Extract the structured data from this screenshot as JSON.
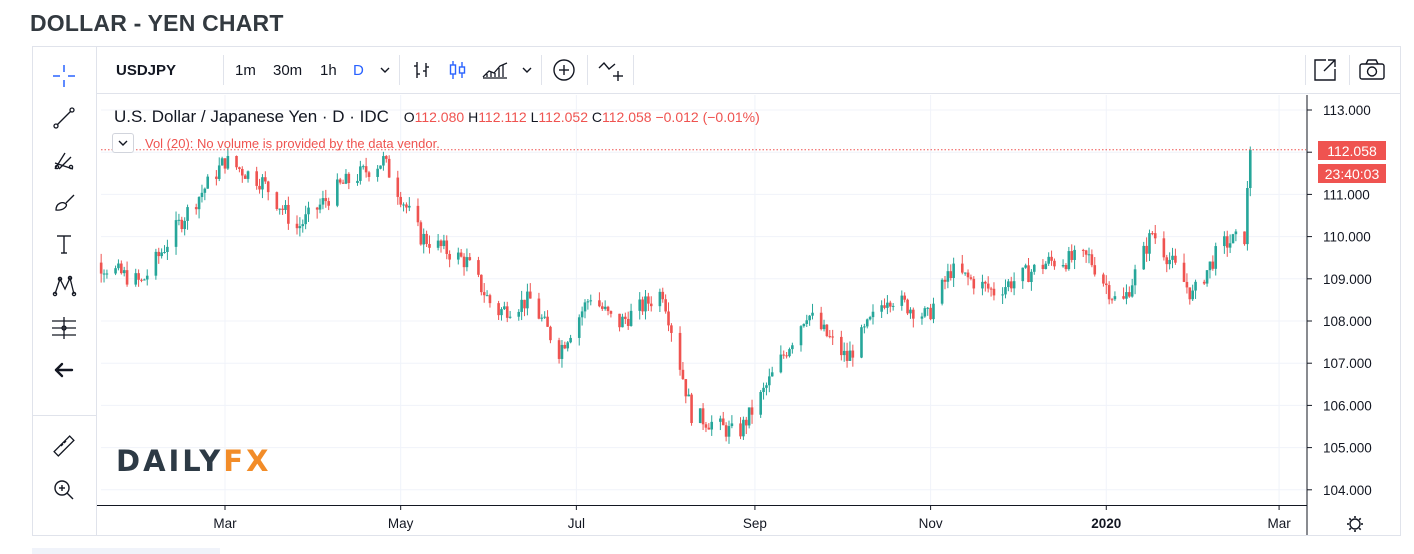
{
  "page": {
    "title": "DOLLAR - YEN CHART"
  },
  "toolbar": {
    "symbol": "USDJPY",
    "intervals": [
      "1m",
      "30m",
      "1h",
      "D"
    ],
    "active_interval": "D",
    "icons": [
      "bars-icon",
      "candles-icon",
      "area-chart-icon",
      "chevron-down-icon",
      "add-indicator-icon",
      "compare-icon",
      "popout-icon",
      "camera-icon"
    ]
  },
  "left_tools": [
    "crosshair-icon",
    "trend-line-icon",
    "pitchfork-icon",
    "brush-icon",
    "text-icon",
    "pattern-icon",
    "fib-icon",
    "back-arrow-icon",
    "ruler-icon",
    "zoom-in-icon"
  ],
  "legend": {
    "instrument": "U.S. Dollar / Japanese Yen · D · IDC",
    "open_label": "O",
    "open": "112.080",
    "high_label": "H",
    "high": "112.112",
    "low_label": "L",
    "low": "112.052",
    "close_label": "C",
    "close": "112.058",
    "change": "−0.012 (−0.01%)",
    "volume_note": "Vol (20): No volume is provided by the data vendor."
  },
  "price_tags": {
    "last_price": "112.058",
    "countdown": "23:40:03"
  },
  "logo": {
    "part1": "DAILY",
    "part2": "FX"
  },
  "colors": {
    "up": "#26a69a",
    "down": "#ef5350",
    "accent": "#2962ff",
    "grid": "#f0f3fa"
  },
  "chart_data": {
    "type": "candlestick",
    "ylim": [
      103.7,
      113.4
    ],
    "y_ticks": [
      "113.000",
      "112.000",
      "111.000",
      "110.000",
      "109.000",
      "108.000",
      "107.000",
      "106.000",
      "105.000",
      "104.000"
    ],
    "x_ticks": [
      "Mar",
      "May",
      "Jul",
      "Sep",
      "Nov",
      "2020",
      "Mar"
    ],
    "last_price": 112.058,
    "path_points": [
      {
        "x": "Jan 8",
        "y": 109.6
      },
      {
        "x": "Jan 31",
        "y": 108.9
      },
      {
        "x": "Feb 15",
        "y": 110.5
      },
      {
        "x": "Mar 1",
        "y": 111.8
      },
      {
        "x": "Mar 14",
        "y": 111.3
      },
      {
        "x": "Mar 26",
        "y": 110.2
      },
      {
        "x": "Apr 10",
        "y": 111.2
      },
      {
        "x": "Apr 25",
        "y": 111.8
      },
      {
        "x": "May 8",
        "y": 110.0
      },
      {
        "x": "May 24",
        "y": 109.4
      },
      {
        "x": "Jun 3",
        "y": 108.2
      },
      {
        "x": "Jun 15",
        "y": 108.5
      },
      {
        "x": "Jun 25",
        "y": 107.3
      },
      {
        "x": "Jul 6",
        "y": 108.6
      },
      {
        "x": "Jul 15",
        "y": 107.9
      },
      {
        "x": "Jul 31",
        "y": 108.7
      },
      {
        "x": "Aug 10",
        "y": 105.8
      },
      {
        "x": "Aug 26",
        "y": 105.3
      },
      {
        "x": "Sep 3",
        "y": 106.2
      },
      {
        "x": "Sep 19",
        "y": 108.2
      },
      {
        "x": "Oct 3",
        "y": 107.1
      },
      {
        "x": "Oct 17",
        "y": 108.6
      },
      {
        "x": "Oct 31",
        "y": 108.1
      },
      {
        "x": "Nov 8",
        "y": 109.2
      },
      {
        "x": "Nov 23",
        "y": 108.7
      },
      {
        "x": "Dec 12",
        "y": 109.4
      },
      {
        "x": "Dec 26",
        "y": 109.5
      },
      {
        "x": "Jan 6",
        "y": 108.3
      },
      {
        "x": "Jan 17",
        "y": 110.1
      },
      {
        "x": "Jan 31",
        "y": 108.6
      },
      {
        "x": "Feb 10",
        "y": 109.8
      },
      {
        "x": "Feb 18",
        "y": 110.0
      },
      {
        "x": "Feb 20",
        "y": 112.06
      }
    ]
  }
}
